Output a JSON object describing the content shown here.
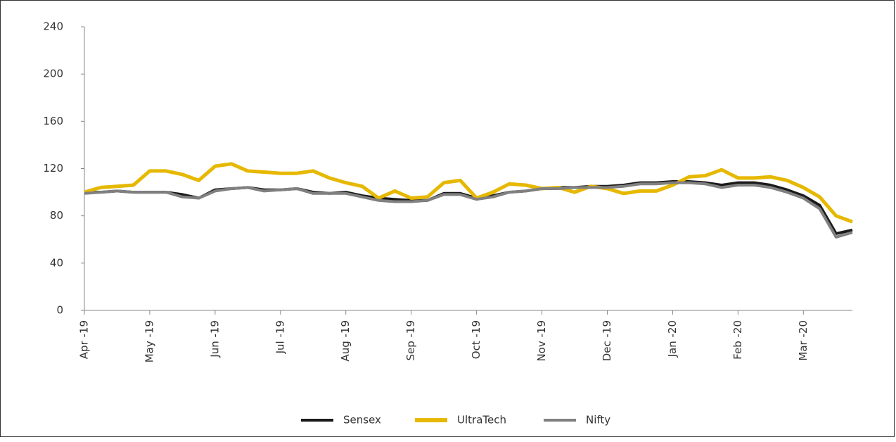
{
  "chart_data": {
    "type": "line",
    "categories": [
      "Apr -19",
      null,
      null,
      null,
      "May -19",
      null,
      null,
      null,
      "Jun -19",
      null,
      null,
      null,
      "Jul -19",
      null,
      null,
      null,
      "Aug -19",
      null,
      null,
      null,
      "Sep -19",
      null,
      null,
      null,
      "Oct -19",
      null,
      null,
      null,
      "Nov -19",
      null,
      null,
      null,
      "Dec -19",
      null,
      null,
      null,
      "Jan -20",
      null,
      null,
      null,
      "Feb -20",
      null,
      null,
      null,
      "Mar -20",
      null,
      null,
      null
    ],
    "series": [
      {
        "name": "Sensex",
        "color": "#1a1a1a",
        "values": [
          100,
          100,
          101,
          100,
          100,
          100,
          98,
          95,
          102,
          103,
          104,
          102,
          102,
          103,
          100,
          99,
          100,
          97,
          95,
          94,
          93,
          93,
          99,
          99,
          95,
          97,
          100,
          101,
          103,
          104,
          104,
          105,
          105,
          106,
          108,
          108,
          109,
          109,
          108,
          106,
          108,
          108,
          106,
          102,
          97,
          89,
          65,
          68
        ]
      },
      {
        "name": "UltraTech",
        "color": "#e6b800",
        "values": [
          100,
          104,
          105,
          106,
          118,
          118,
          115,
          110,
          122,
          124,
          118,
          117,
          116,
          116,
          118,
          112,
          108,
          105,
          95,
          101,
          95,
          96,
          108,
          110,
          95,
          100,
          107,
          106,
          103,
          104,
          100,
          105,
          103,
          99,
          101,
          101,
          106,
          113,
          114,
          119,
          112,
          112,
          113,
          110,
          104,
          96,
          80,
          75
        ]
      },
      {
        "name": "Nifty",
        "color": "#808080",
        "values": [
          99,
          100,
          101,
          100,
          100,
          100,
          96,
          95,
          101,
          103,
          104,
          101,
          102,
          103,
          99,
          99,
          99,
          96,
          93,
          92,
          92,
          93,
          98,
          98,
          94,
          96,
          100,
          101,
          103,
          103,
          104,
          104,
          104,
          105,
          107,
          107,
          108,
          108,
          107,
          104,
          106,
          106,
          104,
          100,
          95,
          86,
          62,
          66
        ]
      }
    ],
    "ylim": [
      0,
      240
    ],
    "yticks": [
      0,
      40,
      80,
      120,
      160,
      200,
      240
    ],
    "grid": false,
    "legend": "bottom"
  }
}
